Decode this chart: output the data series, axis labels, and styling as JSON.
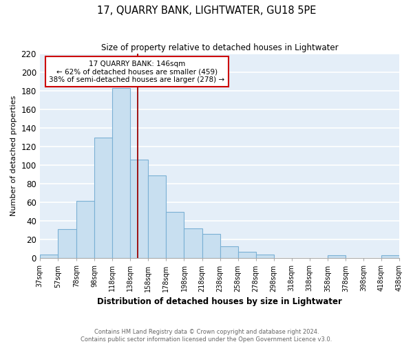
{
  "title": "17, QUARRY BANK, LIGHTWATER, GU18 5PE",
  "subtitle": "Size of property relative to detached houses in Lightwater",
  "xlabel": "Distribution of detached houses by size in Lightwater",
  "ylabel": "Number of detached properties",
  "bar_color": "#c8dff0",
  "bar_edge_color": "#7ab0d4",
  "background_color": "#e4eef8",
  "grid_color": "white",
  "bin_edges": [
    37,
    57,
    78,
    98,
    118,
    138,
    158,
    178,
    198,
    218,
    238,
    258,
    278,
    298,
    318,
    338,
    358,
    378,
    398,
    418,
    438
  ],
  "bin_labels": [
    "37sqm",
    "57sqm",
    "78sqm",
    "98sqm",
    "118sqm",
    "138sqm",
    "158sqm",
    "178sqm",
    "198sqm",
    "218sqm",
    "238sqm",
    "258sqm",
    "278sqm",
    "298sqm",
    "318sqm",
    "338sqm",
    "358sqm",
    "378sqm",
    "398sqm",
    "418sqm",
    "438sqm"
  ],
  "counts": [
    4,
    31,
    62,
    130,
    183,
    106,
    89,
    50,
    32,
    26,
    13,
    7,
    4,
    0,
    0,
    0,
    3,
    0,
    0,
    3
  ],
  "redline_x": 146,
  "annotation_title": "17 QUARRY BANK: 146sqm",
  "annotation_line1": "← 62% of detached houses are smaller (459)",
  "annotation_line2": "38% of semi-detached houses are larger (278) →",
  "annotation_box_color": "white",
  "annotation_box_edge": "#cc0000",
  "redline_color": "#990000",
  "ylim": [
    0,
    220
  ],
  "yticks": [
    0,
    20,
    40,
    60,
    80,
    100,
    120,
    140,
    160,
    180,
    200,
    220
  ],
  "footer_line1": "Contains HM Land Registry data © Crown copyright and database right 2024.",
  "footer_line2": "Contains public sector information licensed under the Open Government Licence v3.0.",
  "figsize": [
    6.0,
    5.0
  ],
  "dpi": 100
}
